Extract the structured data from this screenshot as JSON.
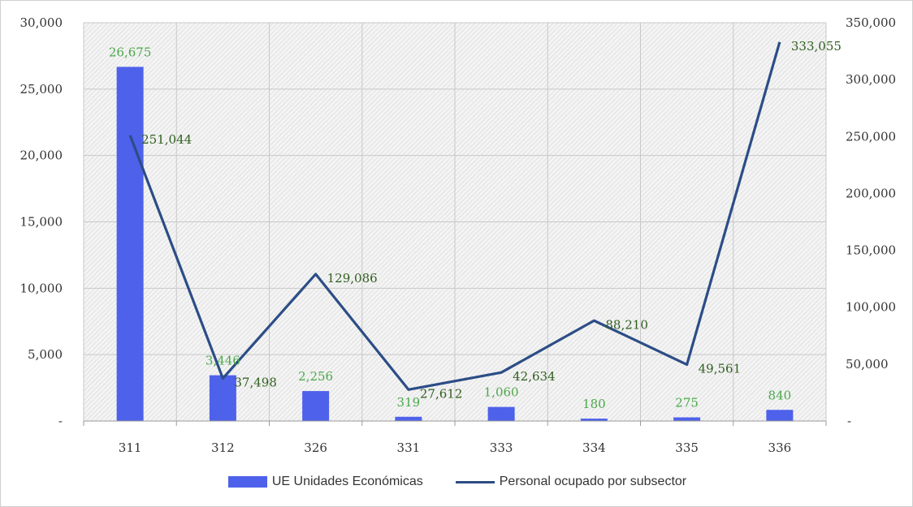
{
  "chart_data": {
    "type": "bar",
    "categories": [
      "311",
      "312",
      "326",
      "331",
      "333",
      "334",
      "335",
      "336"
    ],
    "series": [
      {
        "name": "UE Unidades Económicas",
        "type": "bar",
        "axis": "left",
        "values": [
          26675,
          3446,
          2256,
          319,
          1060,
          180,
          275,
          840
        ],
        "labels": [
          "26,675",
          "3,446",
          "2,256",
          "319",
          "1,060",
          "180",
          "275",
          "840"
        ]
      },
      {
        "name": "Personal ocupado por subsector",
        "type": "line",
        "axis": "right",
        "values": [
          251044,
          37498,
          129086,
          27612,
          42634,
          88210,
          49561,
          333055
        ],
        "labels": [
          "251,044",
          "37,498",
          "129,086",
          "27,612",
          "42,634",
          "88,210",
          "49,561",
          "333,055"
        ]
      }
    ],
    "y_left": {
      "range": [
        0,
        30000
      ],
      "ticks": [
        0,
        5000,
        10000,
        15000,
        20000,
        25000,
        30000
      ],
      "tick_labels": [
        "-",
        "5,000",
        "10,000",
        "15,000",
        "20,000",
        "25,000",
        "30,000"
      ]
    },
    "y_right": {
      "range": [
        0,
        350000
      ],
      "ticks": [
        0,
        50000,
        100000,
        150000,
        200000,
        250000,
        300000,
        350000
      ],
      "tick_labels": [
        "-",
        "50,000",
        "100,000",
        "150,000",
        "200,000",
        "250,000",
        "300,000",
        "350,000"
      ]
    },
    "grid": true,
    "legend_position": "bottom",
    "colors": {
      "bar": "#4e61ea",
      "line": "#2c4d86",
      "bar_label": "#4aa84a",
      "line_label": "#2f5e1e"
    }
  },
  "legend": {
    "bar_label": "UE Unidades Económicas",
    "line_label": "Personal ocupado por subsector"
  }
}
